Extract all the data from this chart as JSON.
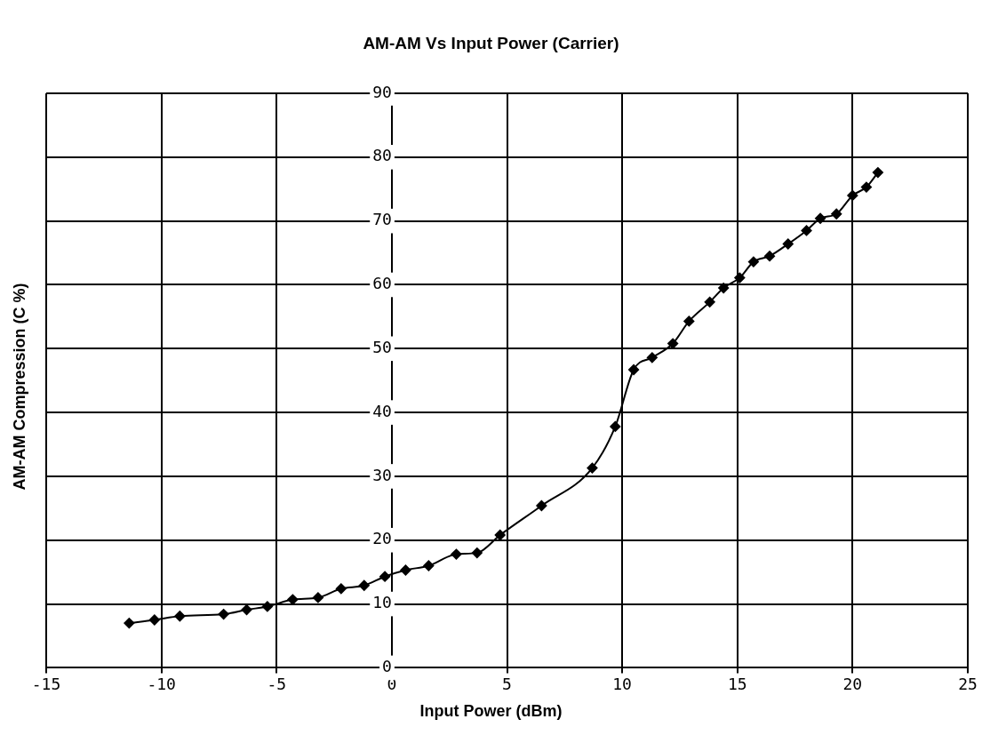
{
  "chart_data": {
    "type": "line",
    "title": "AM-AM Vs Input Power (Carrier)",
    "xlabel": "Input Power (dBm)",
    "ylabel": "AM-AM Compression (C %)",
    "x": [
      -11.4,
      -10.3,
      -9.2,
      -7.3,
      -6.3,
      -5.4,
      -4.3,
      -3.2,
      -2.2,
      -1.2,
      -0.3,
      0.6,
      1.6,
      2.8,
      3.7,
      4.7,
      6.5,
      8.7,
      9.7,
      10.5,
      11.3,
      12.2,
      12.9,
      13.8,
      14.4,
      15.1,
      15.7,
      16.4,
      17.2,
      18.0,
      18.6,
      19.3,
      20.0,
      20.6,
      21.1
    ],
    "series": [
      {
        "color": "#000000",
        "values": [
          7.0,
          7.5,
          8.1,
          8.4,
          9.1,
          9.6,
          10.7,
          11.0,
          12.4,
          12.9,
          14.3,
          15.3,
          16.0,
          17.8,
          18.0,
          20.8,
          25.4,
          31.3,
          37.8,
          46.7,
          48.6,
          50.8,
          54.3,
          57.3,
          59.5,
          61.1,
          63.6,
          64.5,
          66.4,
          68.5,
          70.4,
          71.1,
          74.0,
          75.3,
          77.6
        ]
      }
    ],
    "xlim": [
      -15,
      25
    ],
    "xticks": [
      -15,
      -10,
      -5,
      0,
      5,
      10,
      15,
      20,
      25
    ],
    "ylim": [
      0,
      90
    ],
    "yticks": [
      0,
      10,
      20,
      30,
      40,
      50,
      60,
      70,
      80,
      90
    ],
    "grid": true,
    "legend": false,
    "marker": "diamond",
    "line_style": "solid"
  }
}
